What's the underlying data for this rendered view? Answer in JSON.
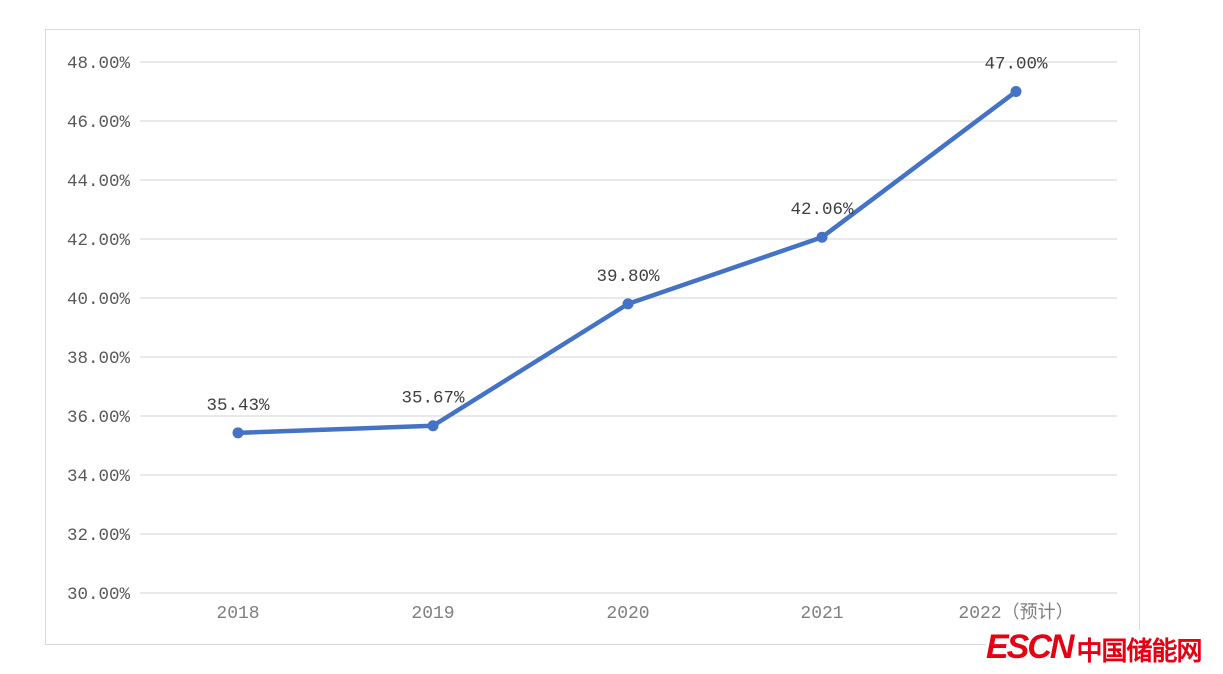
{
  "chart_data": {
    "type": "line",
    "title": "",
    "xlabel": "",
    "ylabel": "",
    "categories": [
      "2018",
      "2019",
      "2020",
      "2021",
      "2022（预计）"
    ],
    "values": [
      35.43,
      35.67,
      39.8,
      42.06,
      47.0
    ],
    "data_labels": [
      "35.43%",
      "35.67%",
      "39.80%",
      "42.06%",
      "47.00%"
    ],
    "y_ticks": [
      {
        "value": 48,
        "label": "48.00%"
      },
      {
        "value": 46,
        "label": "46.00%"
      },
      {
        "value": 44,
        "label": "44.00%"
      },
      {
        "value": 42,
        "label": "42.00%"
      },
      {
        "value": 40,
        "label": "40.00%"
      },
      {
        "value": 38,
        "label": "38.00%"
      },
      {
        "value": 36,
        "label": "36.00%"
      },
      {
        "value": 34,
        "label": "34.00%"
      },
      {
        "value": 32,
        "label": "32.00%"
      },
      {
        "value": 30,
        "label": "30.00%"
      }
    ],
    "ylim": [
      30,
      48
    ],
    "grid": "horizontal",
    "legend_position": "none",
    "colors": {
      "line": "#4472C4",
      "marker": "#4472C4",
      "gridline": "#DCDCDC",
      "tick_label": "#595959",
      "x_label": "#7F7F7F",
      "data_label": "#404040",
      "panel_border": "#D9D9D9",
      "background": "#FFFFFF"
    }
  },
  "watermark": {
    "brand": "ESCN",
    "name": "中国储能网",
    "color": "#E60012"
  }
}
